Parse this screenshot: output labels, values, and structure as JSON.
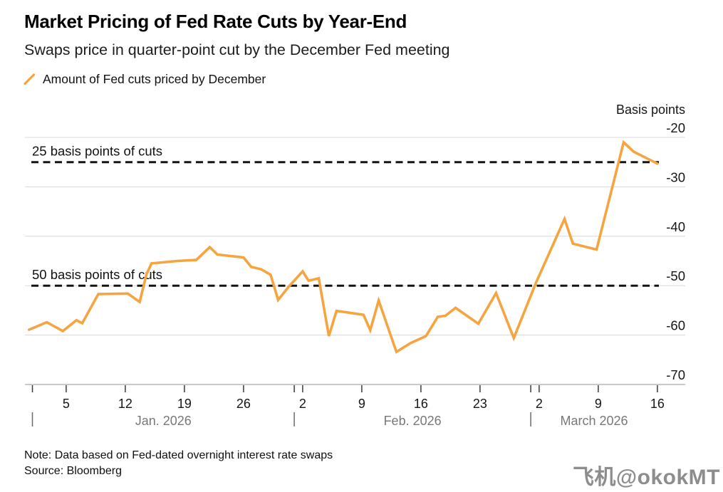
{
  "header": {
    "title": "Market Pricing of Fed Rate Cuts by Year-End",
    "subtitle": "Swaps price in quarter-point cut by the December Fed meeting",
    "legend": {
      "label": "Amount of Fed cuts priced by December",
      "color": "#F6A43F"
    }
  },
  "chart_data": {
    "type": "line",
    "title": "Market Pricing of Fed Rate Cuts by Year-End",
    "subtitle": "Swaps price in quarter-point cut by the December Fed meeting",
    "ylabel": "Basis points",
    "ylim": [
      -70,
      -20
    ],
    "grid": true,
    "y_axis": {
      "label": "Basis points",
      "ticks": [
        -20,
        -30,
        -40,
        -50,
        -60,
        -70
      ]
    },
    "x_axis": {
      "description": "Daily dates, Jan 1 2026 (day 0) through Mar 16 2026 (day 74); weekly Monday ticks",
      "week_ticks": [
        {
          "day": 4,
          "label": "5"
        },
        {
          "day": 11,
          "label": "12"
        },
        {
          "day": 18,
          "label": "19"
        },
        {
          "day": 25,
          "label": "26"
        },
        {
          "day": 32,
          "label": "2"
        },
        {
          "day": 39,
          "label": "9"
        },
        {
          "day": 46,
          "label": "16"
        },
        {
          "day": 53,
          "label": "23"
        },
        {
          "day": 60,
          "label": "2"
        },
        {
          "day": 67,
          "label": "9"
        },
        {
          "day": 74,
          "label": "16"
        }
      ],
      "months": [
        {
          "label": "Jan. 2026",
          "start_day": 0,
          "end_day": 31
        },
        {
          "label": "Feb. 2026",
          "start_day": 31,
          "end_day": 59
        },
        {
          "label": "March 2026",
          "start_day": 59,
          "end_day": 74
        }
      ]
    },
    "reference_lines": [
      {
        "value": -25,
        "label": "25 basis points of cuts"
      },
      {
        "value": -50,
        "label": "50 basis points of cuts"
      }
    ],
    "series": [
      {
        "name": "Amount of Fed cuts priced by December",
        "color": "#F6A43F",
        "unit": "basis points",
        "points": [
          [
            -0.4,
            -58.9
          ],
          [
            1.7,
            -57.4
          ],
          [
            3.6,
            -59.2
          ],
          [
            5.2,
            -57.0
          ],
          [
            5.9,
            -57.6
          ],
          [
            7.8,
            -51.7
          ],
          [
            11.3,
            -51.6
          ],
          [
            12.7,
            -53.3
          ],
          [
            13.5,
            -47.7
          ],
          [
            14.1,
            -45.5
          ],
          [
            17.2,
            -45.0
          ],
          [
            19.4,
            -44.8
          ],
          [
            21.0,
            -42.2
          ],
          [
            21.9,
            -43.7
          ],
          [
            25.0,
            -44.3
          ],
          [
            25.9,
            -46.2
          ],
          [
            27.1,
            -46.7
          ],
          [
            28.2,
            -47.8
          ],
          [
            29.1,
            -52.9
          ],
          [
            30.3,
            -50.3
          ],
          [
            32.0,
            -47.1
          ],
          [
            32.7,
            -49.0
          ],
          [
            33.9,
            -48.5
          ],
          [
            35.1,
            -60.2
          ],
          [
            36.0,
            -55.1
          ],
          [
            39.2,
            -55.9
          ],
          [
            40.0,
            -59.0
          ],
          [
            41.0,
            -53.0
          ],
          [
            43.1,
            -63.4
          ],
          [
            44.8,
            -61.6
          ],
          [
            46.6,
            -60.2
          ],
          [
            48.0,
            -56.3
          ],
          [
            48.9,
            -56.1
          ],
          [
            50.1,
            -54.5
          ],
          [
            52.8,
            -57.7
          ],
          [
            54.9,
            -51.5
          ],
          [
            57.0,
            -60.6
          ],
          [
            59.6,
            -49.5
          ],
          [
            63.0,
            -36.5
          ],
          [
            64.0,
            -41.5
          ],
          [
            66.8,
            -42.7
          ],
          [
            70.0,
            -21.0
          ],
          [
            71.2,
            -22.9
          ],
          [
            74.0,
            -25.3
          ]
        ]
      }
    ]
  },
  "footer": {
    "note": "Note: Data based on Fed-dated overnight interest rate swaps",
    "source": "Source: Bloomberg"
  },
  "watermark": "飞机@okokMT",
  "colors": {
    "accent": "#F6A43F",
    "gridline": "#d8d8d8",
    "axis_line": "#b9b9b9",
    "tick_text": "#161616",
    "month_text": "#76787b",
    "reference_dash": "#141414",
    "watermark_gray": "#8d8d8d"
  }
}
